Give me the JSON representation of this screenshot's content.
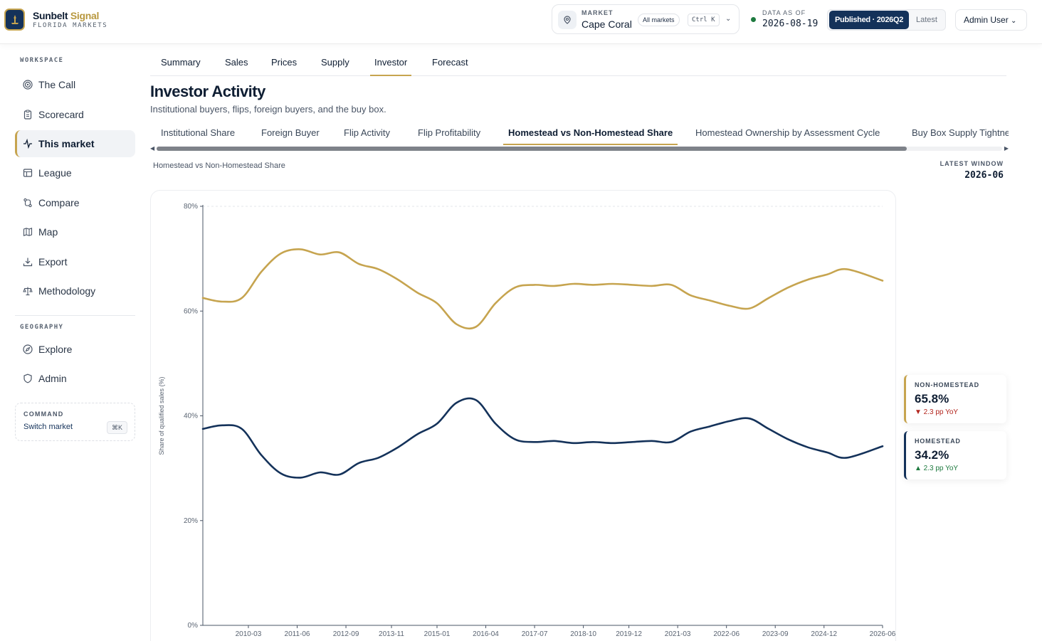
{
  "header": {
    "brand_part1": "Sunbelt ",
    "brand_part2": "Signal",
    "brand_sub": "FLORIDA MARKETS",
    "market_label": "MARKET",
    "market_name": "Cape Coral",
    "all_markets": "All markets",
    "shortcut": "Ctrl K",
    "data_as_of_label": "DATA AS OF",
    "data_as_of": "2026-08-19",
    "published": "Published · 2026Q2",
    "latest": "Latest",
    "user": "Admin User",
    "brand_color": "#14325a",
    "accent_color": "#c6a44f"
  },
  "sidebar": {
    "workspace_label": "WORKSPACE",
    "items": [
      {
        "label": "The Call",
        "icon": "target-icon"
      },
      {
        "label": "Scorecard",
        "icon": "clipboard-icon"
      },
      {
        "label": "This market",
        "icon": "activity-icon",
        "active": true
      },
      {
        "label": "League",
        "icon": "table-icon"
      },
      {
        "label": "Compare",
        "icon": "compare-icon"
      },
      {
        "label": "Map",
        "icon": "map-icon"
      },
      {
        "label": "Export",
        "icon": "download-icon"
      },
      {
        "label": "Methodology",
        "icon": "scale-icon"
      }
    ],
    "geography_label": "GEOGRAPHY",
    "geo_items": [
      {
        "label": "Explore",
        "icon": "compass-icon"
      },
      {
        "label": "Admin",
        "icon": "shield-icon"
      }
    ],
    "command_label": "COMMAND",
    "command_text": "Switch market",
    "command_key": "⌘K"
  },
  "main": {
    "tabs": [
      "Summary",
      "Sales",
      "Prices",
      "Supply",
      "Investor",
      "Forecast"
    ],
    "active_tab": "Investor",
    "title": "Investor Activity",
    "subtitle": "Institutional buyers, flips, foreign buyers, and the buy box.",
    "subtabs": [
      "Institutional Share",
      "Foreign Buyer",
      "Flip Activity",
      "Flip Profitability",
      "Homestead vs Non-Homestead Share",
      "Homestead Ownership by Assessment Cycle",
      "Buy Box Supply Tightness"
    ],
    "active_subtab": "Homestead vs Non-Homestead Share",
    "chart_caption": "Homestead vs Non-Homestead Share",
    "latest_window_label": "LATEST WINDOW",
    "latest_window": "2026-06"
  },
  "kpis": [
    {
      "label": "NON-HOMESTEAD",
      "value": "65.8%",
      "delta": "▼ 2.3 pp YoY",
      "direction": "down",
      "color": "#c6a44f"
    },
    {
      "label": "HOMESTEAD",
      "value": "34.2%",
      "delta": "▲ 2.3 pp YoY",
      "direction": "up",
      "color": "#14325a"
    }
  ],
  "chart_data": {
    "type": "line",
    "title": "",
    "xlabel": "",
    "ylabel": "Share of qualified sales (%)",
    "ylim": [
      0,
      80
    ],
    "yticks": [
      "0%",
      "20%",
      "40%",
      "60%",
      "80%"
    ],
    "xticks": [
      "2010-03",
      "2011-06",
      "2012-09",
      "2013-11",
      "2015-01",
      "2016-04",
      "2017-07",
      "2018-10",
      "2019-12",
      "2021-03",
      "2022-06",
      "2023-09",
      "2024-12",
      "2026-06"
    ],
    "x": [
      "2009-01",
      "2009-07",
      "2010-01",
      "2010-07",
      "2011-01",
      "2011-07",
      "2012-01",
      "2012-07",
      "2013-01",
      "2013-07",
      "2014-01",
      "2014-07",
      "2015-01",
      "2015-07",
      "2016-01",
      "2016-07",
      "2017-01",
      "2017-07",
      "2018-01",
      "2018-07",
      "2019-01",
      "2019-07",
      "2020-01",
      "2020-07",
      "2021-01",
      "2021-07",
      "2022-01",
      "2022-07",
      "2023-01",
      "2023-07",
      "2024-01",
      "2024-07",
      "2025-01",
      "2025-07",
      "2026-06"
    ],
    "series": [
      {
        "name": "Non-Homestead",
        "color": "#c6a44f",
        "values": [
          62.5,
          61.8,
          62.5,
          67.5,
          71.0,
          71.8,
          70.8,
          71.2,
          69.0,
          68.0,
          66.0,
          63.5,
          61.5,
          57.5,
          57.0,
          61.5,
          64.5,
          65.0,
          64.8,
          65.2,
          65.0,
          65.2,
          65.0,
          64.8,
          65.0,
          63.0,
          62.0,
          61.0,
          60.5,
          62.5,
          64.5,
          66.0,
          67.0,
          68.0,
          65.8
        ]
      },
      {
        "name": "Homestead",
        "color": "#14325a",
        "values": [
          37.5,
          38.2,
          37.5,
          32.5,
          29.0,
          28.2,
          29.2,
          28.8,
          31.0,
          32.0,
          34.0,
          36.5,
          38.5,
          42.5,
          43.0,
          38.5,
          35.5,
          35.0,
          35.2,
          34.8,
          35.0,
          34.8,
          35.0,
          35.2,
          35.0,
          37.0,
          38.0,
          39.0,
          39.5,
          37.5,
          35.5,
          34.0,
          33.0,
          32.0,
          34.2
        ]
      }
    ],
    "grid": "top dashed line"
  }
}
